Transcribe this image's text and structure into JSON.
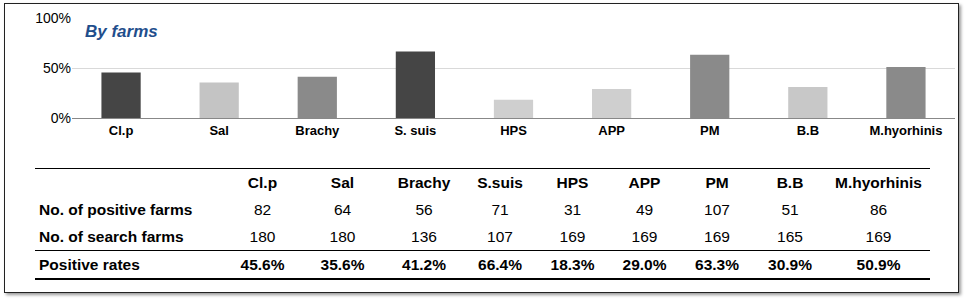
{
  "chart_data": {
    "type": "bar",
    "title": "By farms",
    "categories": [
      "Cl.p",
      "Sal",
      "Brachy",
      "S. suis",
      "HPS",
      "APP",
      "PM",
      "B.B",
      "M.hyorhinis"
    ],
    "values": [
      45.6,
      35.6,
      41.2,
      66.4,
      18.3,
      29.0,
      63.3,
      30.9,
      50.9
    ],
    "colors": [
      "#454545",
      "#c4c4c4",
      "#8a8a8a",
      "#454545",
      "#cfcfcf",
      "#cfcfcf",
      "#8a8a8a",
      "#c8c8c8",
      "#8a8a8a"
    ],
    "ylim": [
      0,
      100
    ],
    "yticks": [
      {
        "value": 0,
        "label": "0%"
      },
      {
        "value": 50,
        "label": "50%"
      },
      {
        "value": 100,
        "label": "100%"
      }
    ],
    "grid": true
  },
  "table": {
    "columns": [
      "Cl.p",
      "Sal",
      "Brachy",
      "S.suis",
      "HPS",
      "APP",
      "PM",
      "B.B",
      "M.hyorhinis"
    ],
    "rows": [
      {
        "label": "No. of positive farms",
        "cells": [
          82,
          64,
          56,
          71,
          31,
          49,
          107,
          51,
          86
        ]
      },
      {
        "label": "No. of search farms",
        "cells": [
          180,
          180,
          136,
          107,
          169,
          169,
          169,
          165,
          169
        ]
      },
      {
        "label": "Positive rates",
        "cells": [
          "45.6%",
          "35.6%",
          "41.2%",
          "66.4%",
          "18.3%",
          "29.0%",
          "63.3%",
          "30.9%",
          "50.9%"
        ]
      }
    ]
  }
}
